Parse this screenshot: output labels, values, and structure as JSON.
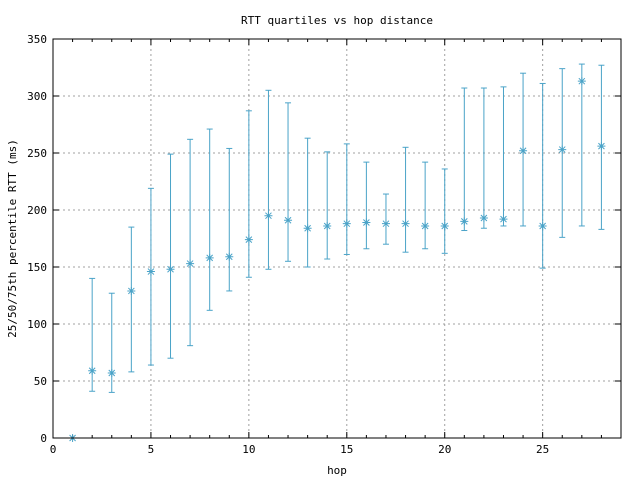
{
  "chart_data": {
    "type": "scatter",
    "title": "RTT quartiles vs hop distance",
    "xlabel": "hop",
    "ylabel": "25/50/75th percentile RTT (ms)",
    "xlim": [
      0,
      29
    ],
    "ylim": [
      0,
      350
    ],
    "xticks": [
      0,
      5,
      10,
      15,
      20,
      25
    ],
    "yticks": [
      0,
      50,
      100,
      150,
      200,
      250,
      300,
      350
    ],
    "grid": true,
    "legend": "none",
    "color": "#4aa3c8",
    "series": [
      {
        "x": [
          1,
          2,
          3,
          4,
          5,
          6,
          7,
          8,
          9,
          10,
          11,
          12,
          13,
          14,
          15,
          16,
          17,
          18,
          19,
          20,
          21,
          22,
          23,
          24,
          25,
          26,
          27,
          28
        ],
        "median": [
          0,
          59,
          57,
          129,
          146,
          148,
          153,
          158,
          159,
          174,
          195,
          191,
          184,
          186,
          188,
          189,
          188,
          188,
          186,
          186,
          190,
          193,
          192,
          252,
          186,
          253,
          313,
          256
        ],
        "p25": [
          0,
          41,
          40,
          58,
          64,
          70,
          81,
          112,
          129,
          141,
          148,
          155,
          150,
          157,
          161,
          166,
          170,
          163,
          166,
          162,
          182,
          184,
          186,
          186,
          149,
          176,
          186,
          183
        ],
        "p75": [
          0,
          140,
          127,
          185,
          219,
          249,
          262,
          271,
          254,
          287,
          305,
          294,
          263,
          251,
          258,
          242,
          214,
          255,
          242,
          236,
          307,
          307,
          308,
          320,
          311,
          324,
          328,
          327
        ]
      }
    ]
  }
}
